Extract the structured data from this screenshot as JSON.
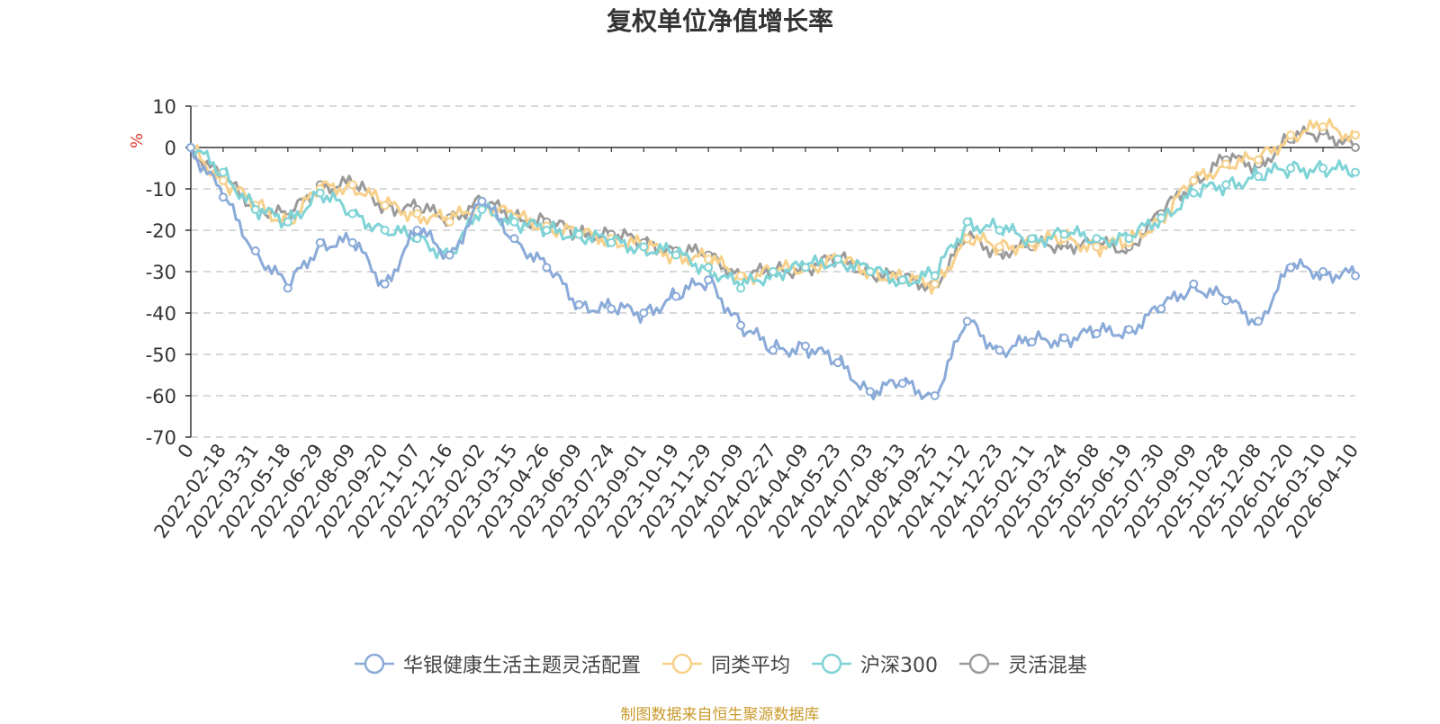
{
  "chart_data": {
    "type": "line",
    "title": "复权单位净值增长率",
    "ylabel": "%",
    "ylim": [
      -70,
      10
    ],
    "yticks": [
      10,
      0,
      -10,
      -20,
      -30,
      -40,
      -50,
      -60,
      -70
    ],
    "grid": true,
    "legend_position": "bottom-center",
    "x_tick_labels": [
      "0",
      "2022-02-18",
      "2022-03-31",
      "2022-05-18",
      "2022-06-29",
      "2022-08-09",
      "2022-09-20",
      "2022-11-07",
      "2022-12-16",
      "2023-02-02",
      "2023-03-15",
      "2023-04-26",
      "2023-06-09",
      "2023-07-24",
      "2023-09-01",
      "2023-10-19",
      "2023-11-29",
      "2024-01-09",
      "2024-02-27",
      "2024-04-09",
      "2024-05-23",
      "2024-07-03",
      "2024-08-13",
      "2024-09-25",
      "2024-11-12",
      "2024-12-23",
      "2025-02-11",
      "2025-03-24",
      "2025-05-08",
      "2025-06-19",
      "2025-07-30",
      "2025-09-09",
      "2025-10-28",
      "2025-12-08",
      "2026-01-20",
      "2026-03-10",
      "2026-04-10"
    ],
    "x": [
      "0",
      "2022-02-18",
      "2022-03-31",
      "2022-05-18",
      "2022-06-29",
      "2022-08-09",
      "2022-09-20",
      "2022-11-07",
      "2022-12-16",
      "2023-02-02",
      "2023-03-15",
      "2023-04-26",
      "2023-06-09",
      "2023-07-24",
      "2023-09-01",
      "2023-10-19",
      "2023-11-29",
      "2024-01-09",
      "2024-02-27",
      "2024-04-09",
      "2024-05-23",
      "2024-07-03",
      "2024-08-13",
      "2024-09-25",
      "2024-11-12",
      "2024-12-23",
      "2025-02-11",
      "2025-03-24",
      "2025-05-08",
      "2025-06-19",
      "2025-07-30",
      "2025-09-09",
      "2025-10-28",
      "2025-12-08",
      "2026-01-20",
      "2026-03-10",
      "2026-04-10"
    ],
    "series": [
      {
        "name": "华银健康生活主题灵活配置",
        "color": "#8aaad8",
        "values": [
          0,
          -12,
          -25,
          -34,
          -23,
          -23,
          -33,
          -20,
          -26,
          -13,
          -22,
          -29,
          -38,
          -39,
          -40,
          -36,
          -32,
          -43,
          -49,
          -48,
          -52,
          -59,
          -57,
          -60,
          -42,
          -49,
          -47,
          -46,
          -45,
          -44,
          -39,
          -33,
          -37,
          -42,
          -29,
          -30,
          -31
        ]
      },
      {
        "name": "同类平均",
        "color": "#f7d08a",
        "values": [
          0,
          -8,
          -14,
          -18,
          -10,
          -9,
          -14,
          -16,
          -18,
          -13,
          -17,
          -19,
          -21,
          -22,
          -24,
          -26,
          -27,
          -31,
          -30,
          -29,
          -27,
          -30,
          -32,
          -33,
          -22,
          -24,
          -23,
          -22,
          -24,
          -23,
          -17,
          -8,
          -4,
          -3,
          3,
          5,
          3
        ]
      },
      {
        "name": "沪深300",
        "color": "#7fd3d6",
        "values": [
          0,
          -6,
          -15,
          -18,
          -11,
          -16,
          -20,
          -22,
          -26,
          -15,
          -18,
          -20,
          -21,
          -23,
          -24,
          -26,
          -29,
          -34,
          -30,
          -29,
          -27,
          -30,
          -32,
          -31,
          -18,
          -20,
          -22,
          -21,
          -22,
          -22,
          -17,
          -11,
          -9,
          -7,
          -5,
          -5,
          -6
        ]
      },
      {
        "name": "灵活混基",
        "color": "#9a9a9a",
        "values": [
          0,
          -8,
          -14,
          -17,
          -9,
          -9,
          -14,
          -15,
          -17,
          -13,
          -17,
          -18,
          -21,
          -21,
          -23,
          -25,
          -26,
          -31,
          -30,
          -29,
          -27,
          -30,
          -32,
          -33,
          -22,
          -25,
          -24,
          -23,
          -24,
          -24,
          -16,
          -8,
          -3,
          -4,
          2,
          4,
          0
        ]
      }
    ]
  },
  "source_note": "制图数据来自恒生聚源数据库"
}
